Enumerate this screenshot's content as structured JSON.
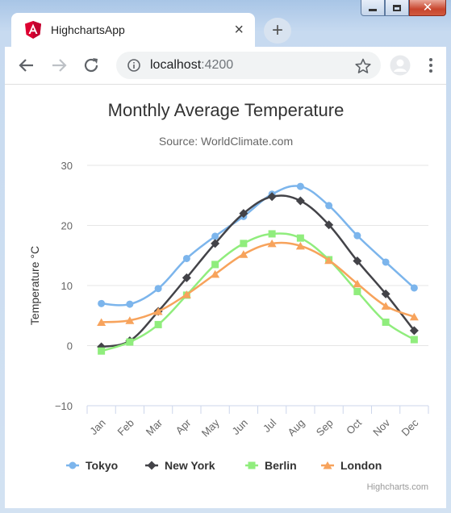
{
  "browser": {
    "tab_title": "HighchartsApp",
    "tab_close_label": "×",
    "new_tab_label": "+",
    "url_host": "localhost",
    "url_port": ":4200",
    "icons": {
      "favicon": "angular-icon",
      "back": "back-arrow-icon",
      "forward": "forward-arrow-icon",
      "reload": "reload-icon",
      "info": "info-icon",
      "star": "star-icon",
      "profile": "profile-avatar-icon",
      "menu": "kebab-menu-icon"
    }
  },
  "credits": "Highcharts.com",
  "chart_data": {
    "type": "line",
    "title": "Monthly Average Temperature",
    "subtitle": "Source: WorldClimate.com",
    "ylabel": "Temperature °C",
    "xlabel": "",
    "ylim": [
      -10,
      30
    ],
    "yticks": [
      -10,
      0,
      10,
      20,
      30
    ],
    "grid": true,
    "legend_position": "bottom",
    "categories": [
      "Jan",
      "Feb",
      "Mar",
      "Apr",
      "May",
      "Jun",
      "Jul",
      "Aug",
      "Sep",
      "Oct",
      "Nov",
      "Dec"
    ],
    "series": [
      {
        "name": "Tokyo",
        "marker": "circle",
        "color": "#7cb5ec",
        "values": [
          7.0,
          6.9,
          9.5,
          14.5,
          18.2,
          21.5,
          25.2,
          26.5,
          23.3,
          18.3,
          13.9,
          9.6
        ]
      },
      {
        "name": "New York",
        "marker": "diamond",
        "color": "#434348",
        "values": [
          -0.2,
          0.8,
          5.7,
          11.3,
          17.0,
          22.0,
          24.8,
          24.1,
          20.1,
          14.1,
          8.6,
          2.5
        ]
      },
      {
        "name": "Berlin",
        "marker": "square",
        "color": "#90ed7d",
        "values": [
          -0.9,
          0.6,
          3.5,
          8.4,
          13.5,
          17.0,
          18.6,
          17.9,
          14.3,
          9.0,
          3.9,
          1.0
        ]
      },
      {
        "name": "London",
        "marker": "triangle",
        "color": "#f7a35c",
        "values": [
          3.9,
          4.2,
          5.7,
          8.5,
          11.9,
          15.2,
          17.0,
          16.6,
          14.2,
          10.3,
          6.6,
          4.8
        ]
      }
    ]
  }
}
